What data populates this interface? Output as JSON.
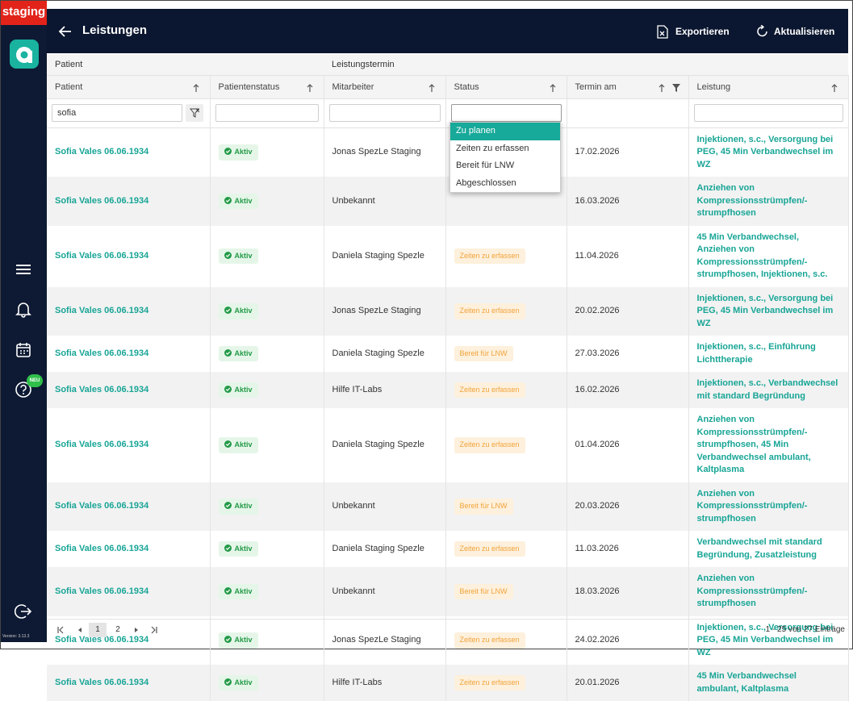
{
  "sidebar": {
    "env_label": "staging",
    "badge": "NEU",
    "version": "Version: 3.13.3"
  },
  "header": {
    "title": "Leistungen",
    "export": "Exportieren",
    "refresh": "Aktualisieren"
  },
  "table": {
    "groups": [
      "Patient",
      "Leistungstermin"
    ],
    "columns": [
      "Patient",
      "Patientenstatus",
      "Mitarbeiter",
      "Status",
      "Termin am",
      "Leistung"
    ],
    "filter": {
      "patient": "sofia"
    },
    "status_options": [
      "Zu planen",
      "Zeiten zu erfassen",
      "Bereit für LNW",
      "Abgeschlossen"
    ],
    "rows": [
      {
        "patient": "Sofia Vales 06.06.1934",
        "patient_status": "Aktiv",
        "employee": "Jonas SpezLe Staging",
        "status": null,
        "date": "17.02.2026",
        "service": "Injektionen, s.c., Versorgung bei PEG, 45 Min Verbandwechsel im WZ"
      },
      {
        "patient": "Sofia Vales 06.06.1934",
        "patient_status": "Aktiv",
        "employee": "Unbekannt",
        "status": null,
        "date": "16.03.2026",
        "service": "Anziehen von Kompressionsstrümpfen/-strumpfhosen"
      },
      {
        "patient": "Sofia Vales 06.06.1934",
        "patient_status": "Aktiv",
        "employee": "Daniela Staging Spezle",
        "status": "Zeiten zu erfassen",
        "date": "11.04.2026",
        "service": "45 Min Verbandwechsel, Anziehen von Kompressionsstrümpfen/-strumpfhosen, Injektionen, s.c."
      },
      {
        "patient": "Sofia Vales 06.06.1934",
        "patient_status": "Aktiv",
        "employee": "Jonas SpezLe Staging",
        "status": "Zeiten zu erfassen",
        "date": "20.02.2026",
        "service": "Injektionen, s.c., Versorgung bei PEG, 45 Min Verbandwechsel im WZ"
      },
      {
        "patient": "Sofia Vales 06.06.1934",
        "patient_status": "Aktiv",
        "employee": "Daniela Staging Spezle",
        "status": "Bereit für LNW",
        "date": "27.03.2026",
        "service": "Injektionen, s.c., Einführung Lichttherapie"
      },
      {
        "patient": "Sofia Vales 06.06.1934",
        "patient_status": "Aktiv",
        "employee": "Hilfe IT-Labs",
        "status": "Zeiten zu erfassen",
        "date": "16.02.2026",
        "service": "Injektionen, s.c., Verbandwechsel mit standard Begründung"
      },
      {
        "patient": "Sofia Vales 06.06.1934",
        "patient_status": "Aktiv",
        "employee": "Daniela Staging Spezle",
        "status": "Zeiten zu erfassen",
        "date": "01.04.2026",
        "service": "Anziehen von Kompressionsstrümpfen/-strumpfhosen, 45 Min Verbandwechsel ambulant, Kaltplasma"
      },
      {
        "patient": "Sofia Vales 06.06.1934",
        "patient_status": "Aktiv",
        "employee": "Unbekannt",
        "status": "Bereit für LNW",
        "date": "20.03.2026",
        "service": "Anziehen von Kompressionsstrümpfen/-strumpfhosen"
      },
      {
        "patient": "Sofia Vales 06.06.1934",
        "patient_status": "Aktiv",
        "employee": "Daniela Staging Spezle",
        "status": "Zeiten zu erfassen",
        "date": "11.03.2026",
        "service": "Verbandwechsel mit standard Begründung, Zusatzleistung"
      },
      {
        "patient": "Sofia Vales 06.06.1934",
        "patient_status": "Aktiv",
        "employee": "Unbekannt",
        "status": "Bereit für LNW",
        "date": "18.03.2026",
        "service": "Anziehen von Kompressionsstrümpfen/-strumpfhosen"
      },
      {
        "patient": "Sofia Vales 06.06.1934",
        "patient_status": "Aktiv",
        "employee": "Jonas SpezLe Staging",
        "status": "Zeiten zu erfassen",
        "date": "24.02.2026",
        "service": "Injektionen, s.c., Versorgung bei PEG, 45 Min Verbandwechsel im WZ"
      },
      {
        "patient": "Sofia Vales 06.06.1934",
        "patient_status": "Aktiv",
        "employee": "Hilfe IT-Labs",
        "status": "Zeiten zu erfassen",
        "date": "20.01.2026",
        "service": "45 Min Verbandwechsel ambulant, Kaltplasma"
      }
    ]
  },
  "pagination": {
    "pages": [
      1,
      2
    ],
    "summary": "1 - 25 von 27 Einträge"
  }
}
